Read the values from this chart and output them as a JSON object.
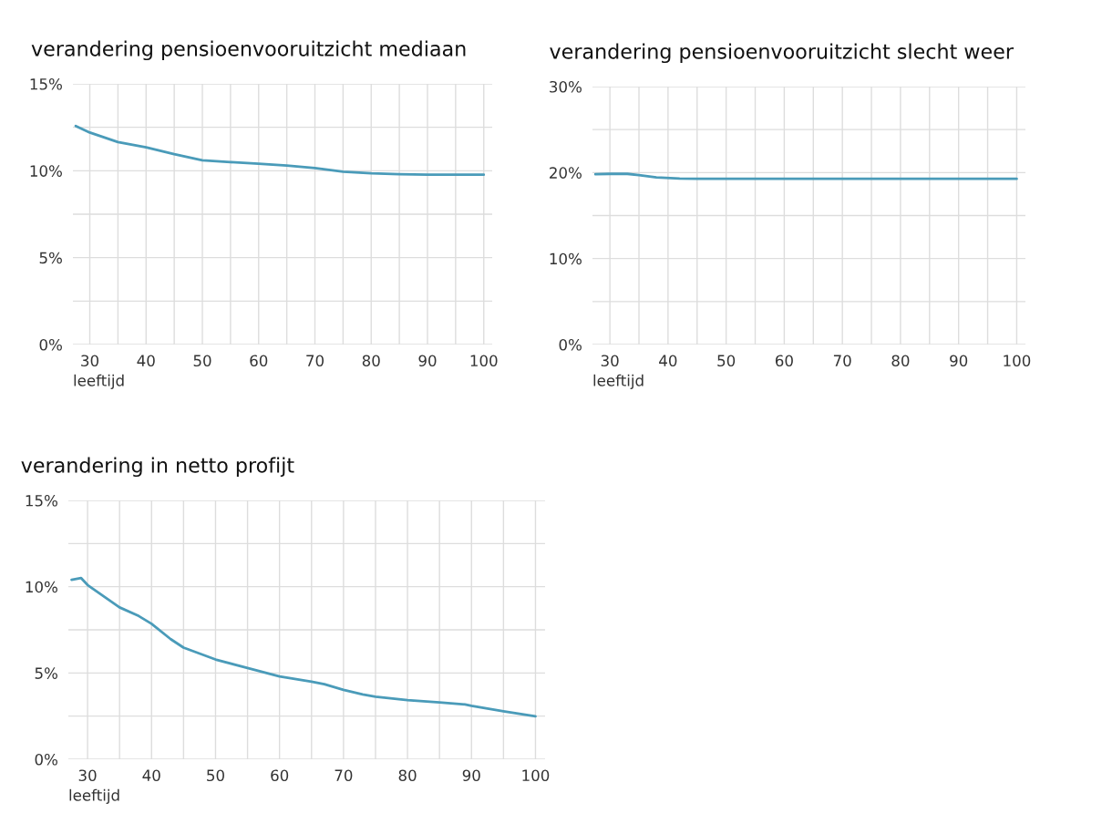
{
  "chart_data": [
    {
      "type": "line",
      "title": "verandering pensioenvooruitzicht mediaan",
      "xlabel": "leeftijd",
      "x": [
        27.5,
        30,
        35,
        40,
        45,
        50,
        55,
        60,
        65,
        70,
        75,
        80,
        85,
        90,
        95,
        100
      ],
      "series": [
        {
          "color": "#4a9bb9",
          "values": [
            12.58,
            12.2,
            11.65,
            11.35,
            10.95,
            10.6,
            10.5,
            10.4,
            10.3,
            10.15,
            9.95,
            9.85,
            9.8,
            9.77,
            9.77,
            9.77
          ]
        }
      ],
      "xlim": [
        27,
        101.5
      ],
      "xticks": [
        30,
        {
          "value": 35,
          "label": null
        },
        40,
        {
          "value": 45,
          "label": null
        },
        50,
        {
          "value": 55,
          "label": null
        },
        60,
        {
          "value": 65,
          "label": null
        },
        70,
        {
          "value": 75,
          "label": null
        },
        80,
        {
          "value": 85,
          "label": null
        },
        90,
        {
          "value": 95,
          "label": null
        },
        100
      ],
      "ylim": [
        0,
        15
      ],
      "yticks": [
        {
          "value": 0,
          "label": "0%"
        },
        {
          "value": 2.5,
          "label": null
        },
        {
          "value": 5,
          "label": "5%"
        },
        {
          "value": 7.5,
          "label": null
        },
        {
          "value": 10,
          "label": "10%"
        },
        {
          "value": 12.5,
          "label": null
        },
        {
          "value": 15,
          "label": "15%"
        }
      ],
      "grid": true
    },
    {
      "type": "line",
      "title": "verandering pensioenvooruitzicht slecht weer",
      "xlabel": "leeftijd",
      "x": [
        27.5,
        30,
        33,
        35,
        38,
        42,
        50,
        60,
        70,
        80,
        90,
        100
      ],
      "series": [
        {
          "color": "#4a9bb9",
          "values": [
            19.8,
            19.85,
            19.85,
            19.7,
            19.45,
            19.3,
            19.27,
            19.27,
            19.27,
            19.27,
            19.27,
            19.27
          ]
        }
      ],
      "xlim": [
        27,
        101.5
      ],
      "xticks": [
        30,
        {
          "value": 35,
          "label": null
        },
        40,
        {
          "value": 45,
          "label": null
        },
        50,
        {
          "value": 55,
          "label": null
        },
        60,
        {
          "value": 65,
          "label": null
        },
        70,
        {
          "value": 75,
          "label": null
        },
        80,
        {
          "value": 85,
          "label": null
        },
        90,
        {
          "value": 95,
          "label": null
        },
        100
      ],
      "ylim": [
        0,
        30
      ],
      "yticks": [
        {
          "value": 0,
          "label": "0%"
        },
        {
          "value": 5,
          "label": null
        },
        {
          "value": 10,
          "label": "10%"
        },
        {
          "value": 15,
          "label": null
        },
        {
          "value": 20,
          "label": "20%"
        },
        {
          "value": 25,
          "label": null
        },
        {
          "value": 30,
          "label": "30%"
        }
      ],
      "grid": true
    },
    {
      "type": "line",
      "title": "verandering in netto profijt",
      "xlabel": "leeftijd",
      "x": [
        27.5,
        29,
        30,
        35,
        38,
        40,
        43,
        45,
        50,
        55,
        60,
        65,
        67,
        70,
        73,
        75,
        80,
        85,
        89,
        90,
        95,
        100
      ],
      "series": [
        {
          "color": "#4a9bb9",
          "values": [
            10.4,
            10.5,
            10.1,
            8.8,
            8.3,
            7.85,
            6.96,
            6.47,
            5.78,
            5.29,
            4.8,
            4.5,
            4.35,
            4.02,
            3.76,
            3.63,
            3.43,
            3.29,
            3.18,
            3.1,
            2.78,
            2.49
          ]
        }
      ],
      "xlim": [
        27,
        101.5
      ],
      "xticks": [
        30,
        {
          "value": 35,
          "label": null
        },
        40,
        {
          "value": 45,
          "label": null
        },
        50,
        {
          "value": 55,
          "label": null
        },
        60,
        {
          "value": 65,
          "label": null
        },
        70,
        {
          "value": 75,
          "label": null
        },
        80,
        {
          "value": 85,
          "label": null
        },
        90,
        {
          "value": 95,
          "label": null
        },
        100
      ],
      "ylim": [
        0,
        15
      ],
      "yticks": [
        {
          "value": 0,
          "label": "0%"
        },
        {
          "value": 2.5,
          "label": null
        },
        {
          "value": 5,
          "label": "5%"
        },
        {
          "value": 7.5,
          "label": null
        },
        {
          "value": 10,
          "label": "10%"
        },
        {
          "value": 12.5,
          "label": null
        },
        {
          "value": 15,
          "label": "15%"
        }
      ],
      "grid": true
    }
  ]
}
